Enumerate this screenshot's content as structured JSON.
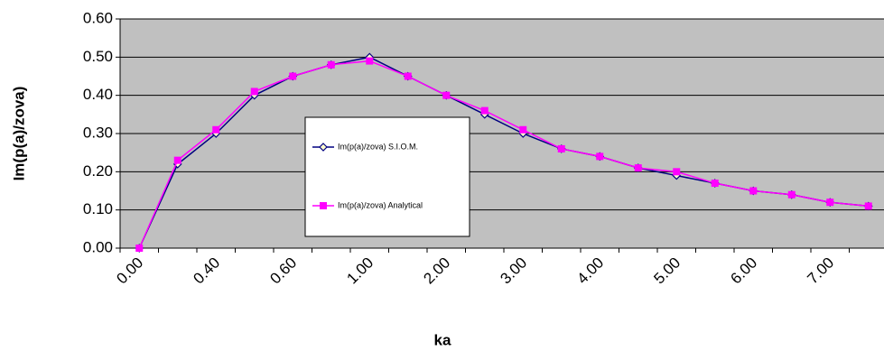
{
  "chart_data": {
    "type": "line",
    "x_label": "ka",
    "y_label": "Im(p(a)/zova)",
    "categories": [
      "0.00",
      null,
      "0.40",
      null,
      "0.60",
      null,
      "1.00",
      null,
      "2.00",
      null,
      "3.00",
      null,
      "4.00",
      null,
      "5.00",
      null,
      "6.00",
      null,
      "7.00",
      null
    ],
    "series": [
      {
        "name": "Im(p(a)/zova) S.I.O.M.",
        "color": "#000080",
        "marker": "diamond",
        "values": [
          0,
          0.22,
          0.3,
          0.4,
          0.45,
          0.48,
          0.5,
          0.45,
          0.4,
          0.35,
          0.3,
          0.26,
          0.24,
          0.21,
          0.19,
          0.17,
          0.15,
          0.14,
          0.12,
          0.11
        ]
      },
      {
        "name": "Im(p(a)/zova) Analytical",
        "color": "#ff00ff",
        "marker": "square",
        "values": [
          0,
          0.23,
          0.31,
          0.41,
          0.45,
          0.48,
          0.49,
          0.45,
          0.4,
          0.36,
          0.31,
          0.26,
          0.24,
          0.21,
          0.2,
          0.17,
          0.15,
          0.14,
          0.12,
          0.11
        ]
      }
    ],
    "ylim": [
      0,
      0.6
    ],
    "yticks": [
      {
        "value": 0,
        "label": "0.00"
      },
      {
        "value": 0.1,
        "label": "0.10"
      },
      {
        "value": 0.2,
        "label": "0.20"
      },
      {
        "value": 0.3,
        "label": "0.30"
      },
      {
        "value": 0.4,
        "label": "0.40"
      },
      {
        "value": 0.5,
        "label": "0.50"
      },
      {
        "value": 0.6,
        "label": "0.60"
      }
    ],
    "grid": true
  }
}
